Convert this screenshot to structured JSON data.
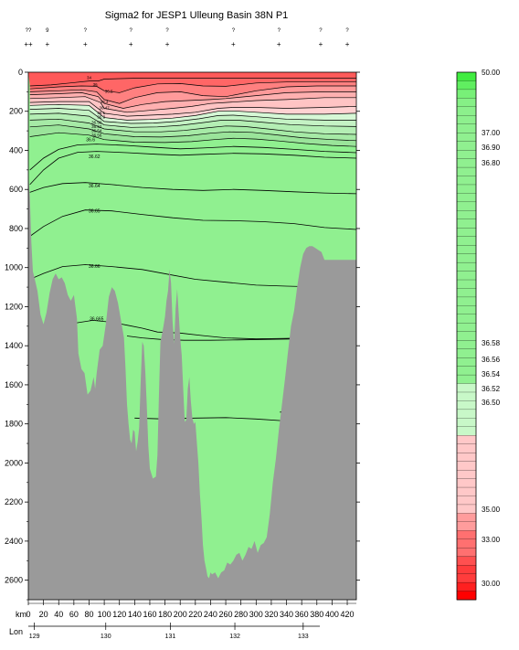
{
  "title": "Sigma2 for JESP1 Ulleung Basin 38N P1",
  "stations": {
    "labels": [
      "??",
      "9",
      "?",
      "?",
      "?",
      "?",
      "?",
      "?",
      "?"
    ],
    "km": [
      0,
      25,
      75,
      135,
      183,
      270,
      330,
      385,
      420
    ],
    "second_row_first": "++"
  },
  "chart_data": {
    "type": "contour",
    "title": "Sigma2 for JESP1 Ulleung Basin 38N P1",
    "xlabel": "km",
    "ylabel": "",
    "xlim": [
      0,
      432
    ],
    "ylim": [
      2700,
      0
    ],
    "x_ticks": [
      0,
      20,
      40,
      60,
      80,
      100,
      120,
      140,
      160,
      180,
      200,
      220,
      240,
      260,
      280,
      300,
      320,
      340,
      360,
      380,
      400,
      420
    ],
    "y_ticks": [
      0,
      200,
      400,
      600,
      800,
      1000,
      1200,
      1400,
      1600,
      1800,
      2000,
      2200,
      2400,
      2600
    ],
    "lon_axis": {
      "label": "Lon",
      "ticks": [
        {
          "lon": "129",
          "km": 8
        },
        {
          "lon": "130",
          "km": 102
        },
        {
          "lon": "131",
          "km": 187
        },
        {
          "lon": "132",
          "km": 272
        },
        {
          "lon": "133",
          "km": 362
        }
      ]
    },
    "contours": [
      {
        "label": "36.6",
        "label_at": [
          82,
          345
        ],
        "points": [
          [
            2,
            575
          ],
          [
            20,
            500
          ],
          [
            40,
            440
          ],
          [
            65,
            410
          ],
          [
            90,
            405
          ],
          [
            130,
            412
          ],
          [
            170,
            420
          ],
          [
            200,
            425
          ],
          [
            230,
            420
          ],
          [
            270,
            415
          ],
          [
            310,
            418
          ],
          [
            350,
            425
          ],
          [
            390,
            435
          ],
          [
            432,
            440
          ]
        ]
      },
      {
        "label": "36.62",
        "label_at": [
          87,
          430
        ],
        "points": [
          [
            2,
            500
          ],
          [
            20,
            440
          ],
          [
            40,
            395
          ],
          [
            65,
            372
          ],
          [
            90,
            368
          ],
          [
            130,
            375
          ],
          [
            170,
            385
          ],
          [
            200,
            392
          ],
          [
            230,
            388
          ],
          [
            270,
            380
          ],
          [
            310,
            385
          ],
          [
            350,
            395
          ],
          [
            390,
            405
          ],
          [
            432,
            412
          ]
        ]
      },
      {
        "label": "36.64",
        "label_at": [
          87,
          580
        ],
        "points": [
          [
            2,
            615
          ],
          [
            20,
            590
          ],
          [
            45,
            570
          ],
          [
            75,
            565
          ],
          [
            110,
            575
          ],
          [
            150,
            590
          ],
          [
            190,
            600
          ],
          [
            230,
            605
          ],
          [
            270,
            600
          ],
          [
            310,
            605
          ],
          [
            350,
            612
          ],
          [
            390,
            618
          ],
          [
            432,
            622
          ]
        ]
      },
      {
        "label": "36.65",
        "label_at": [
          87,
          708
        ],
        "points": [
          [
            2,
            840
          ],
          [
            20,
            790
          ],
          [
            45,
            738
          ],
          [
            75,
            705
          ],
          [
            110,
            710
          ],
          [
            150,
            728
          ],
          [
            190,
            745
          ],
          [
            230,
            758
          ],
          [
            270,
            760
          ],
          [
            310,
            765
          ],
          [
            350,
            775
          ],
          [
            390,
            795
          ],
          [
            432,
            805
          ]
        ]
      },
      {
        "label": "36.66",
        "label_at": [
          87,
          992
        ],
        "points": [
          [
            2,
            1060
          ],
          [
            20,
            1030
          ],
          [
            45,
            995
          ],
          [
            75,
            985
          ],
          [
            110,
            995
          ],
          [
            150,
            1010
          ],
          [
            185,
            1035
          ],
          [
            220,
            1060
          ],
          [
            260,
            1075
          ],
          [
            300,
            1090
          ],
          [
            340,
            1095
          ],
          [
            370,
            1098
          ],
          [
            385,
            1100
          ]
        ]
      },
      {
        "label": "36.665",
        "label_at": [
          90,
          1260
        ],
        "points": [
          [
            60,
            1285
          ],
          [
            85,
            1270
          ],
          [
            110,
            1280
          ],
          [
            130,
            1295
          ],
          [
            150,
            1310
          ],
          [
            170,
            1330
          ],
          [
            200,
            1335
          ],
          [
            230,
            1348
          ],
          [
            260,
            1360
          ],
          [
            300,
            1365
          ],
          [
            340,
            1362
          ],
          [
            360,
            1360
          ]
        ]
      },
      {
        "label": "",
        "points": [
          [
            130,
            1350
          ],
          [
            150,
            1360
          ],
          [
            175,
            1368
          ],
          [
            205,
            1372
          ],
          [
            240,
            1372
          ],
          [
            275,
            1370
          ],
          [
            310,
            1368
          ],
          [
            345,
            1366
          ],
          [
            360,
            1365
          ]
        ]
      },
      {
        "label": "",
        "points": [
          [
            140,
            1770
          ],
          [
            180,
            1775
          ],
          [
            220,
            1770
          ],
          [
            260,
            1768
          ],
          [
            300,
            1775
          ],
          [
            340,
            1785
          ],
          [
            355,
            1788
          ]
        ]
      },
      {
        "label": "",
        "points": [
          [
            350,
            1710
          ],
          [
            342,
            1720
          ],
          [
            332,
            1740
          ],
          [
            345,
            1748
          ],
          [
            355,
            1750
          ]
        ]
      }
    ],
    "surface_contours": [
      {
        "points": [
          [
            2,
            70
          ],
          [
            30,
            65
          ],
          [
            55,
            55
          ],
          [
            80,
            45
          ],
          [
            92,
            45
          ],
          [
            100,
            35
          ],
          [
            150,
            30
          ],
          [
            200,
            30
          ],
          [
            260,
            30
          ],
          [
            320,
            30
          ],
          [
            380,
            30
          ],
          [
            432,
            30
          ]
        ]
      },
      {
        "points": [
          [
            2,
            85
          ],
          [
            40,
            75
          ],
          [
            70,
            70
          ],
          [
            90,
            72
          ],
          [
            100,
            95
          ],
          [
            120,
            105
          ],
          [
            140,
            80
          ],
          [
            170,
            60
          ],
          [
            200,
            58
          ],
          [
            230,
            70
          ],
          [
            260,
            72
          ],
          [
            300,
            55
          ],
          [
            340,
            50
          ],
          [
            380,
            48
          ],
          [
            432,
            48
          ]
        ]
      },
      {
        "points": [
          [
            2,
            100
          ],
          [
            40,
            95
          ],
          [
            70,
            90
          ],
          [
            90,
            100
          ],
          [
            100,
            140
          ],
          [
            120,
            160
          ],
          [
            140,
            130
          ],
          [
            170,
            105
          ],
          [
            200,
            100
          ],
          [
            230,
            120
          ],
          [
            260,
            125
          ],
          [
            300,
            95
          ],
          [
            340,
            75
          ],
          [
            380,
            70
          ],
          [
            432,
            70
          ]
        ]
      },
      {
        "points": [
          [
            2,
            115
          ],
          [
            40,
            110
          ],
          [
            70,
            105
          ],
          [
            92,
            125
          ],
          [
            100,
            160
          ],
          [
            125,
            185
          ],
          [
            150,
            165
          ],
          [
            180,
            150
          ],
          [
            210,
            145
          ],
          [
            240,
            140
          ],
          [
            260,
            135
          ],
          [
            300,
            120
          ],
          [
            340,
            105
          ],
          [
            390,
            100
          ],
          [
            432,
            100
          ]
        ]
      },
      {
        "points": [
          [
            2,
            135
          ],
          [
            40,
            130
          ],
          [
            75,
            125
          ],
          [
            95,
            155
          ],
          [
            100,
            185
          ],
          [
            130,
            205
          ],
          [
            160,
            195
          ],
          [
            190,
            185
          ],
          [
            215,
            175
          ],
          [
            240,
            160
          ],
          [
            260,
            155
          ],
          [
            300,
            145
          ],
          [
            340,
            140
          ],
          [
            390,
            130
          ],
          [
            432,
            130
          ]
        ]
      },
      {
        "points": [
          [
            2,
            155
          ],
          [
            40,
            150
          ],
          [
            80,
            150
          ],
          [
            100,
            210
          ],
          [
            130,
            225
          ],
          [
            160,
            220
          ],
          [
            190,
            215
          ],
          [
            220,
            205
          ],
          [
            250,
            185
          ],
          [
            270,
            180
          ],
          [
            300,
            180
          ],
          [
            340,
            185
          ],
          [
            390,
            180
          ],
          [
            432,
            175
          ]
        ]
      },
      {
        "points": [
          [
            2,
            170
          ],
          [
            40,
            165
          ],
          [
            80,
            170
          ],
          [
            100,
            232
          ],
          [
            130,
            245
          ],
          [
            160,
            242
          ],
          [
            190,
            235
          ],
          [
            220,
            222
          ],
          [
            250,
            200
          ],
          [
            270,
            198
          ],
          [
            300,
            205
          ],
          [
            340,
            215
          ],
          [
            390,
            215
          ],
          [
            432,
            210
          ]
        ]
      },
      {
        "points": [
          [
            2,
            190
          ],
          [
            40,
            185
          ],
          [
            80,
            195
          ],
          [
            100,
            252
          ],
          [
            135,
            262
          ],
          [
            165,
            260
          ],
          [
            195,
            252
          ],
          [
            225,
            238
          ],
          [
            250,
            222
          ],
          [
            270,
            220
          ],
          [
            300,
            228
          ],
          [
            340,
            240
          ],
          [
            390,
            245
          ],
          [
            432,
            245
          ]
        ]
      },
      {
        "points": [
          [
            2,
            215
          ],
          [
            40,
            210
          ],
          [
            80,
            225
          ],
          [
            100,
            270
          ],
          [
            135,
            282
          ],
          [
            170,
            280
          ],
          [
            200,
            272
          ],
          [
            230,
            258
          ],
          [
            255,
            245
          ],
          [
            275,
            245
          ],
          [
            305,
            255
          ],
          [
            345,
            268
          ],
          [
            390,
            275
          ],
          [
            432,
            278
          ]
        ]
      },
      {
        "points": [
          [
            2,
            245
          ],
          [
            40,
            240
          ],
          [
            80,
            260
          ],
          [
            100,
            290
          ],
          [
            140,
            305
          ],
          [
            175,
            305
          ],
          [
            205,
            298
          ],
          [
            235,
            285
          ],
          [
            260,
            275
          ],
          [
            285,
            278
          ],
          [
            315,
            290
          ],
          [
            350,
            305
          ],
          [
            390,
            315
          ],
          [
            432,
            318
          ]
        ]
      },
      {
        "points": [
          [
            2,
            280
          ],
          [
            40,
            270
          ],
          [
            80,
            290
          ],
          [
            100,
            315
          ],
          [
            140,
            330
          ],
          [
            175,
            332
          ],
          [
            210,
            325
          ],
          [
            240,
            312
          ],
          [
            265,
            305
          ],
          [
            295,
            308
          ],
          [
            325,
            320
          ],
          [
            360,
            335
          ],
          [
            400,
            345
          ],
          [
            432,
            350
          ]
        ]
      },
      {
        "points": [
          [
            2,
            330
          ],
          [
            40,
            310
          ],
          [
            80,
            322
          ],
          [
            100,
            345
          ],
          [
            140,
            358
          ],
          [
            180,
            360
          ],
          [
            215,
            355
          ],
          [
            245,
            345
          ],
          [
            270,
            338
          ],
          [
            300,
            342
          ],
          [
            330,
            352
          ],
          [
            365,
            365
          ],
          [
            400,
            375
          ],
          [
            432,
            380
          ]
        ]
      }
    ],
    "small_labels": [
      {
        "text": "34",
        "at": [
          80,
          25
        ]
      },
      {
        "text": "36",
        "at": [
          88,
          60
        ]
      },
      {
        "text": "36.5",
        "at": [
          106,
          95
        ]
      },
      {
        "text": "36.4",
        "at": [
          100,
          150
        ]
      },
      {
        "text": "36.47",
        "at": [
          100,
          180
        ]
      },
      {
        "text": "36.1",
        "at": [
          96,
          205
        ]
      },
      {
        "text": "36.3",
        "at": [
          96,
          228
        ]
      },
      {
        "text": "36.50",
        "at": [
          90,
          255
        ]
      },
      {
        "text": "36.52",
        "at": [
          90,
          275
        ]
      },
      {
        "text": "36.54",
        "at": [
          90,
          297
        ]
      },
      {
        "text": "36.56",
        "at": [
          90,
          320
        ]
      }
    ],
    "colorbar": {
      "levels_labeled": [
        "50.00",
        "37.00",
        "36.90",
        "36.80",
        "36.58",
        "36.56",
        "36.54",
        "36.52",
        "36.50",
        "35.00",
        "33.00",
        "30.00"
      ]
    }
  }
}
